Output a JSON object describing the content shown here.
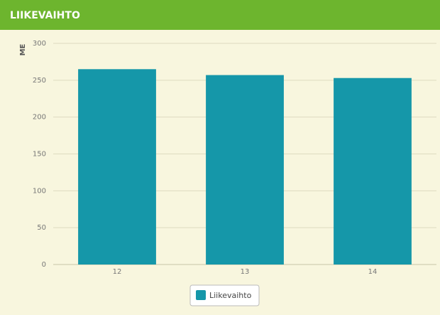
{
  "chart_data": {
    "type": "bar",
    "title": "LIIKEVAIHTO",
    "y_label": "ME",
    "categories": [
      "12",
      "13",
      "14"
    ],
    "series": [
      {
        "name": "Liikevaihto",
        "color": "#1597a9",
        "values": [
          265,
          257,
          253
        ]
      }
    ],
    "ylim": [
      0,
      300
    ],
    "yticks": [
      0,
      50,
      100,
      150,
      200,
      250,
      300
    ],
    "grid": true,
    "legend": "bottom"
  }
}
